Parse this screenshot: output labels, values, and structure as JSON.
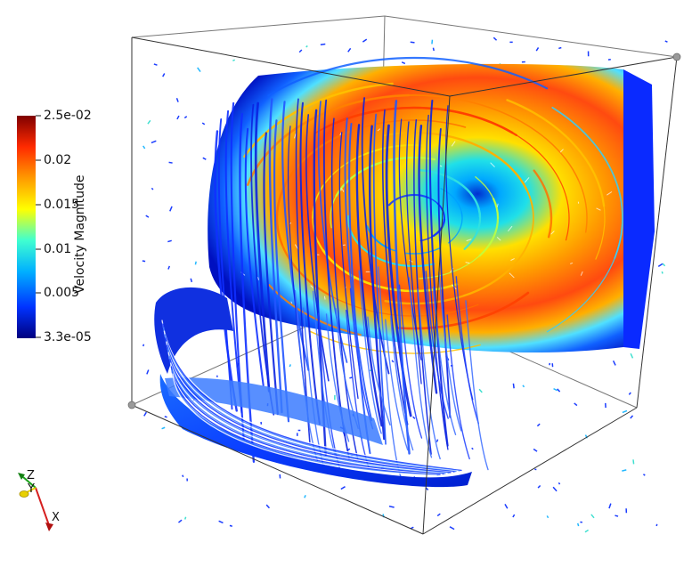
{
  "colorbar": {
    "title": "Velocity Magnitude",
    "ticks": [
      "2.5e-02",
      "0.02",
      "0.015",
      "0.01",
      "0.005",
      "3.3e-05"
    ],
    "range": [
      3.3e-05,
      0.025
    ],
    "colormap": [
      "#00007f",
      "#0033ff",
      "#00b0ff",
      "#40ffd0",
      "#ffff00",
      "#ff9a00",
      "#ff2a00",
      "#7f0000"
    ]
  },
  "orientation_axes": {
    "labels": [
      "Z",
      "Y",
      "X"
    ],
    "colors": {
      "x": "#d62020",
      "y": "#e8d000",
      "z": "#1aa01a"
    }
  }
}
